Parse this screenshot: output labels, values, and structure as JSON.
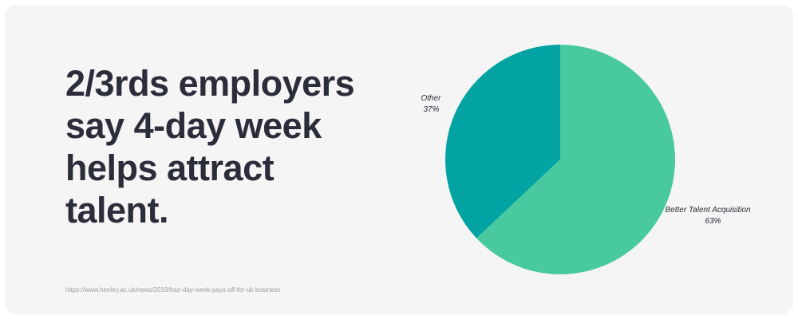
{
  "headline": {
    "lines": [
      "2/3rds employers",
      "say 4-day week",
      "helps attract",
      "talent."
    ]
  },
  "source": "https://www.henley.ac.uk/news/2019/four-day-week-pays-off-for-uk-business",
  "colors": {
    "card_background": "#f5f5f5",
    "headline_text": "#2b2d3a",
    "source_text": "#9a9ca8"
  },
  "chart_data": {
    "type": "pie",
    "title": "",
    "slices": [
      {
        "label": "Better Talent Acquisition",
        "percent_label": "63%",
        "value": 63,
        "color": "#48c9a0"
      },
      {
        "label": "Other",
        "percent_label": "37%",
        "value": 37,
        "color": "#02a3a2"
      }
    ],
    "start_angle": "12 o'clock",
    "direction": "clockwise",
    "legend": "none",
    "labels": "outside slices"
  }
}
